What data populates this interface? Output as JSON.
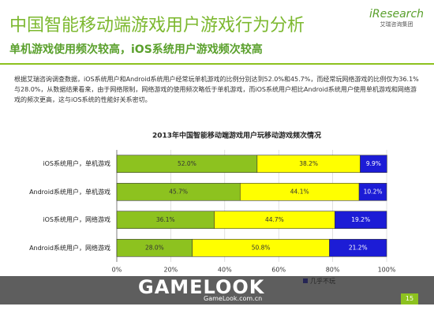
{
  "header": {
    "title": "中国智能移动端游戏用户游戏行为分析",
    "subtitle": "单机游戏使用频次较高，iOS系统用户游戏频次较高",
    "logo": "iResearch",
    "logo_sub": "艾瑞咨询集团"
  },
  "body": "根据艾瑞咨询调查数据，iOS系统用户和Android系统用户经常玩单机游戏的比例分别达到52.0%和45.7%，而经常玩网络游戏的比例仅为36.1%与28.0%，从数据结果看来，由于网络限制，网络游戏的使用频次略低于单机游戏，而iOS系统用户相比Android系统用户使用单机游戏和网络游戏的频次更高，这与iOS系统的性能好关系密切。",
  "chart_data": {
    "type": "stacked-barh",
    "title": "2013年中国智能移动端游戏用户玩移动游戏频次情况",
    "categories": [
      "iOS系统用户，单机游戏",
      "Android系统用户，单机游戏",
      "iOS系统用户，网络游戏",
      "Android系统用户，网络游戏"
    ],
    "series": [
      {
        "color": "#8dc21f",
        "values": [
          52.0,
          45.7,
          36.1,
          28.0
        ],
        "value_labels": [
          "52.0%",
          "45.7%",
          "36.1%",
          "28.0%"
        ]
      },
      {
        "color": "#ffff00",
        "values": [
          38.2,
          44.1,
          44.7,
          50.8
        ],
        "value_labels": [
          "38.2%",
          "44.1%",
          "44.7%",
          "50.8%"
        ]
      },
      {
        "name": "几乎不玩",
        "color": "#1c1cd6",
        "values": [
          9.9,
          10.2,
          19.2,
          21.2
        ],
        "value_labels": [
          "9.9%",
          "10.2%",
          "19.2%",
          "21.2%"
        ]
      }
    ],
    "xlim": [
      0,
      100
    ],
    "xticks": [
      {
        "value": 0,
        "label": "0%"
      },
      {
        "value": 20,
        "label": "20%"
      },
      {
        "value": 40,
        "label": "40%"
      },
      {
        "value": 60,
        "label": "60%"
      },
      {
        "value": 80,
        "label": "80%"
      },
      {
        "value": 100,
        "label": "100%"
      }
    ],
    "grid": true
  },
  "watermark": {
    "brand": "GAMELOOK",
    "site": "GameLook.com.cn"
  },
  "page_number": "15"
}
